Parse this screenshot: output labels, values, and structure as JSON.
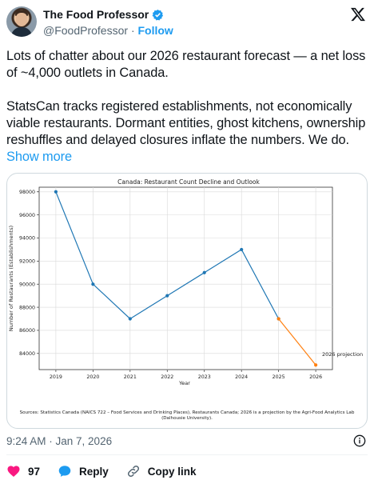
{
  "author": {
    "name": "The Food Professor",
    "handle": "@FoodProfessor",
    "separator": "·",
    "follow_label": "Follow"
  },
  "tweet": {
    "paragraph1": "Lots of chatter about our 2026 restaurant forecast — a net loss of ~4,000 outlets in Canada.",
    "paragraph2": "StatsCan tracks registered establishments, not economically viable restaurants. Dormant entities, ghost kitchens, ownership reshuffles and delayed closures inflate the numbers. We do.",
    "show_more": "Show more"
  },
  "meta": {
    "timestamp": "9:24 AM · Jan 7, 2026"
  },
  "actions": {
    "like_count": "97",
    "reply_label": "Reply",
    "copy_link_label": "Copy link"
  },
  "colors": {
    "accent": "#1d9bf0",
    "like": "#f91880",
    "series_actual": "#1f77b4",
    "series_projection": "#ff7f0e"
  },
  "icons": [
    "verified-badge-icon",
    "x-logo-icon",
    "info-icon",
    "heart-icon",
    "reply-bubble-icon",
    "link-icon"
  ],
  "chart_data": {
    "type": "line",
    "title": "Canada: Restaurant Count Decline and Outlook",
    "xlabel": "Year",
    "ylabel": "Number of Restaurants (Establishments)",
    "ylim": [
      82600,
      98400
    ],
    "yticks": [
      84000,
      86000,
      88000,
      90000,
      92000,
      94000,
      96000,
      98000
    ],
    "xticks": [
      2019,
      2020,
      2021,
      2022,
      2023,
      2024,
      2025,
      2026
    ],
    "grid": true,
    "series": [
      {
        "x": [
          2019,
          2020,
          2021,
          2022,
          2023,
          2024,
          2025
        ],
        "values": [
          98000,
          90000,
          87000,
          89000,
          91000,
          93000,
          87000
        ]
      },
      {
        "x": [
          2025,
          2026
        ],
        "values": [
          87000,
          83000
        ]
      }
    ],
    "annotation": {
      "text": "2026 projection",
      "x": 2026,
      "y": 83000
    },
    "source_note": "Sources: Statistics Canada (NAICS 722 – Food Services and Drinking Places), Restaurants Canada; 2026 is a projection by the Agri-Food Analytics Lab (Dalhousie University)."
  }
}
